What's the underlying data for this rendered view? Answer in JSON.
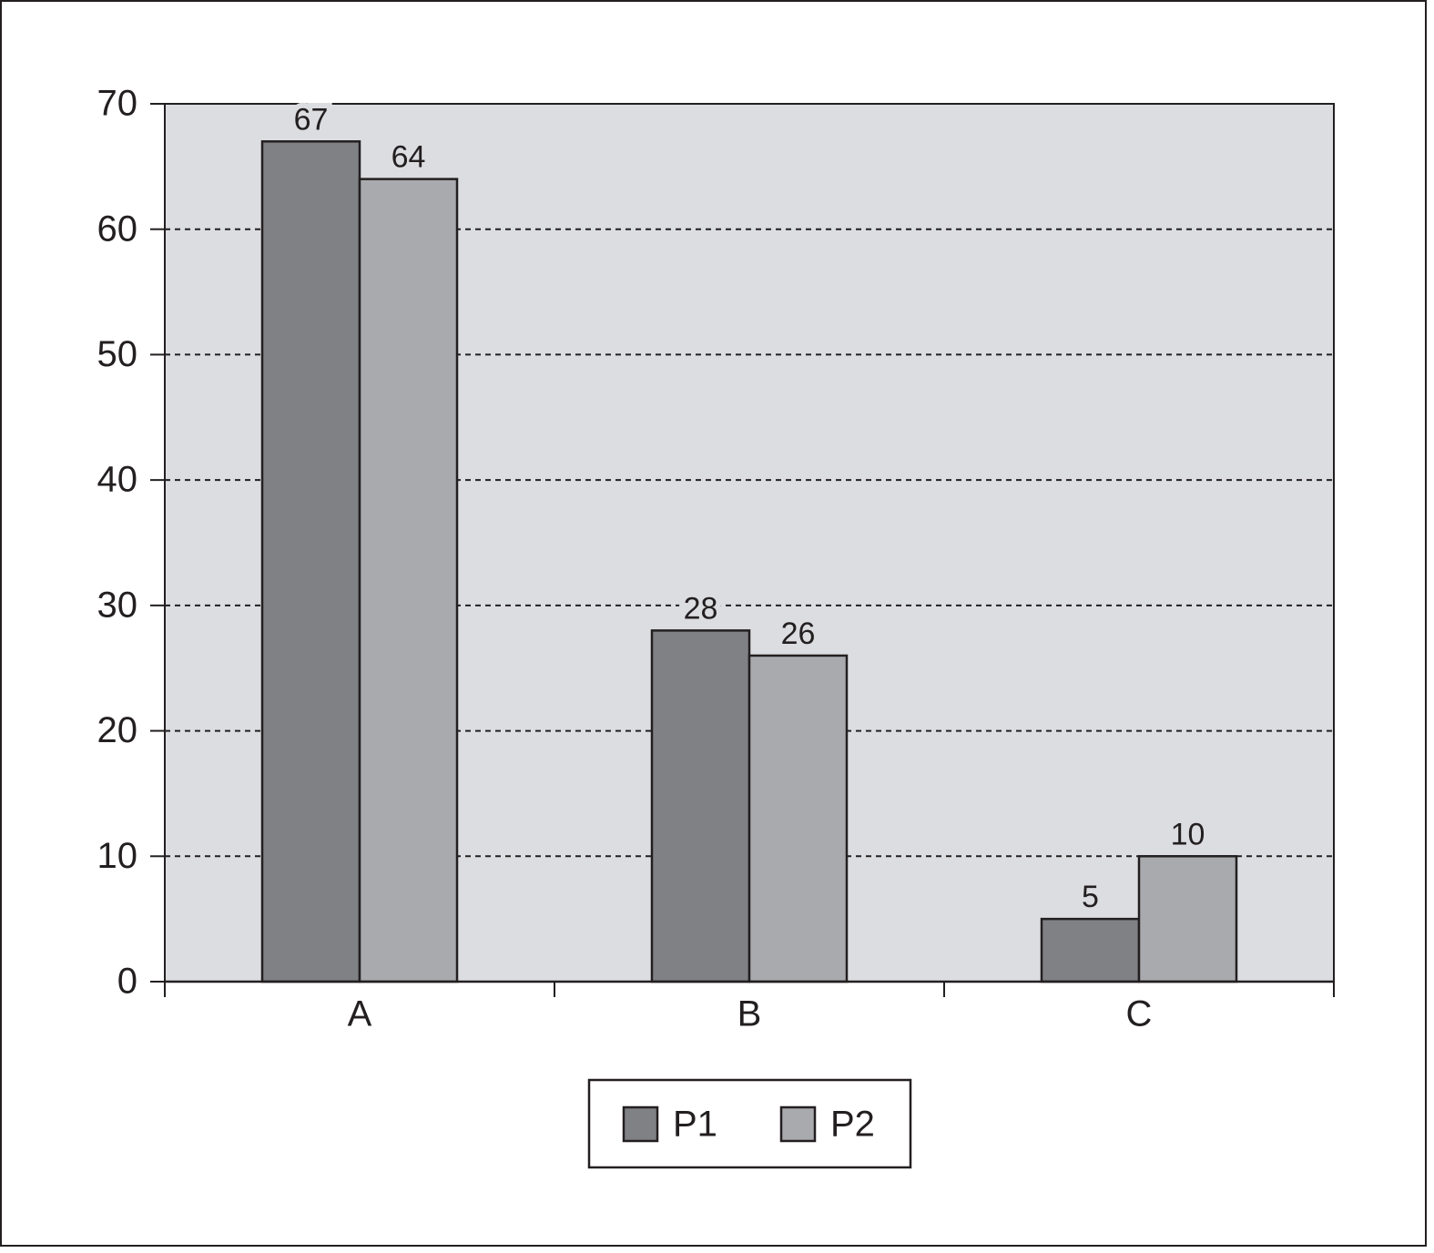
{
  "chart_data": {
    "type": "bar",
    "categories": [
      "A",
      "B",
      "C"
    ],
    "series": [
      {
        "name": "P1",
        "color": "#808185",
        "values": [
          67,
          28,
          5
        ]
      },
      {
        "name": "P2",
        "color": "#a9aaae",
        "values": [
          64,
          26,
          10
        ]
      }
    ],
    "ylim": [
      0,
      70
    ],
    "yticks": [
      0,
      10,
      20,
      30,
      40,
      50,
      60,
      70
    ],
    "grid": true,
    "legend": "bottom"
  }
}
